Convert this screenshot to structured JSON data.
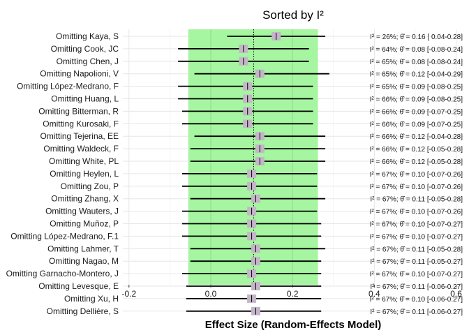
{
  "chart_data": {
    "type": "forest",
    "title": "Sorted by I²",
    "xlabel": "Effect Size (Random-Effects Model)",
    "xlim": [
      -0.22,
      0.62
    ],
    "xticks": [
      -0.2,
      0.0,
      0.2,
      0.4,
      0.6
    ],
    "xtick_labels": [
      "-0.2",
      "0.0",
      "0.2",
      "0.4",
      "0.6"
    ],
    "grid": true,
    "ci_band": [
      -0.055,
      0.262
    ],
    "ci_band_color": "#a6f5a0",
    "reference_line": 0.105,
    "colors": {
      "box": "#c4b6c8",
      "line": "#000000",
      "grid": "#e6e6e6"
    },
    "studies": [
      {
        "label": "Omitting Kaya, S",
        "estimate": 0.16,
        "lower": 0.04,
        "upper": 0.28,
        "annotation": "I² = 26%; θ̂ = 0.16 [ 0.04-0.28]"
      },
      {
        "label": "Omitting Cook, JC",
        "estimate": 0.08,
        "lower": -0.08,
        "upper": 0.24,
        "annotation": "I² = 64%; θ̂ = 0.08 [-0.08-0.24]"
      },
      {
        "label": "Omitting Chen, J",
        "estimate": 0.08,
        "lower": -0.08,
        "upper": 0.24,
        "annotation": "I² = 65%; θ̂ = 0.08 [-0.08-0.24]"
      },
      {
        "label": "Omitting Napolioni, V",
        "estimate": 0.12,
        "lower": -0.04,
        "upper": 0.29,
        "annotation": "I² = 65%; θ̂ = 0.12 [-0.04-0.29]"
      },
      {
        "label": "Omitting López-Medrano, F",
        "estimate": 0.09,
        "lower": -0.08,
        "upper": 0.25,
        "annotation": "I² = 65%; θ̂ = 0.09 [-0.08-0.25]"
      },
      {
        "label": "Omitting Huang, L",
        "estimate": 0.09,
        "lower": -0.08,
        "upper": 0.25,
        "annotation": "I² = 66%; θ̂ = 0.09 [-0.08-0.25]"
      },
      {
        "label": "Omitting Bitterman, R",
        "estimate": 0.09,
        "lower": -0.07,
        "upper": 0.25,
        "annotation": "I² = 66%; θ̂ = 0.09 [-0.07-0.25]"
      },
      {
        "label": "Omitting Kurosaki, F",
        "estimate": 0.09,
        "lower": -0.07,
        "upper": 0.25,
        "annotation": "I² = 66%; θ̂ = 0.09 [-0.07-0.25]"
      },
      {
        "label": "Omitting Tejerina, EE",
        "estimate": 0.12,
        "lower": -0.04,
        "upper": 0.28,
        "annotation": "I² = 66%; θ̂ = 0.12 [-0.04-0.28]"
      },
      {
        "label": "Omitting Waldeck, F",
        "estimate": 0.12,
        "lower": -0.05,
        "upper": 0.28,
        "annotation": "I² = 66%; θ̂ = 0.12 [-0.05-0.28]"
      },
      {
        "label": "Omitting White, PL",
        "estimate": 0.12,
        "lower": -0.05,
        "upper": 0.28,
        "annotation": "I² = 66%; θ̂ = 0.12 [-0.05-0.28]"
      },
      {
        "label": "Omitting Heylen, L",
        "estimate": 0.1,
        "lower": -0.07,
        "upper": 0.26,
        "annotation": "I² = 67%; θ̂ = 0.10 [-0.07-0.26]"
      },
      {
        "label": "Omitting Zou, P",
        "estimate": 0.1,
        "lower": -0.07,
        "upper": 0.26,
        "annotation": "I² = 67%; θ̂ = 0.10 [-0.07-0.26]"
      },
      {
        "label": "Omitting Zhang, X",
        "estimate": 0.11,
        "lower": -0.05,
        "upper": 0.28,
        "annotation": "I² = 67%; θ̂ = 0.11 [-0.05-0.28]"
      },
      {
        "label": "Omitting Wauters, J",
        "estimate": 0.1,
        "lower": -0.07,
        "upper": 0.26,
        "annotation": "I² = 67%; θ̂ = 0.10 [-0.07-0.26]"
      },
      {
        "label": "Omitting Muñoz, P",
        "estimate": 0.1,
        "lower": -0.07,
        "upper": 0.27,
        "annotation": "I² = 67%; θ̂ = 0.10 [-0.07-0.27]"
      },
      {
        "label": "Omitting López-Medrano, F.1",
        "estimate": 0.1,
        "lower": -0.07,
        "upper": 0.27,
        "annotation": "I² = 67%; θ̂ = 0.10 [-0.07-0.27]"
      },
      {
        "label": "Omitting Lahmer, T",
        "estimate": 0.11,
        "lower": -0.05,
        "upper": 0.28,
        "annotation": "I² = 67%; θ̂ = 0.11 [-0.05-0.28]"
      },
      {
        "label": "Omitting Nagao, M",
        "estimate": 0.11,
        "lower": -0.05,
        "upper": 0.27,
        "annotation": "I² = 67%; θ̂ = 0.11 [-0.05-0.27]"
      },
      {
        "label": "Omitting Garnacho-Montero, J",
        "estimate": 0.1,
        "lower": -0.07,
        "upper": 0.27,
        "annotation": "I² = 67%; θ̂ = 0.10 [-0.07-0.27]"
      },
      {
        "label": "Omitting Levesque, E",
        "estimate": 0.11,
        "lower": -0.06,
        "upper": 0.27,
        "annotation": "I² = 67%; θ̂ = 0.11 [-0.06-0.27]"
      },
      {
        "label": "Omitting Xu, H",
        "estimate": 0.1,
        "lower": -0.06,
        "upper": 0.27,
        "annotation": "I² = 67%; θ̂ = 0.10 [-0.06-0.27]"
      },
      {
        "label": "Omitting Dellière, S",
        "estimate": 0.11,
        "lower": -0.06,
        "upper": 0.27,
        "annotation": "I² = 67%; θ̂ = 0.11 [-0.06-0.27]"
      }
    ]
  }
}
